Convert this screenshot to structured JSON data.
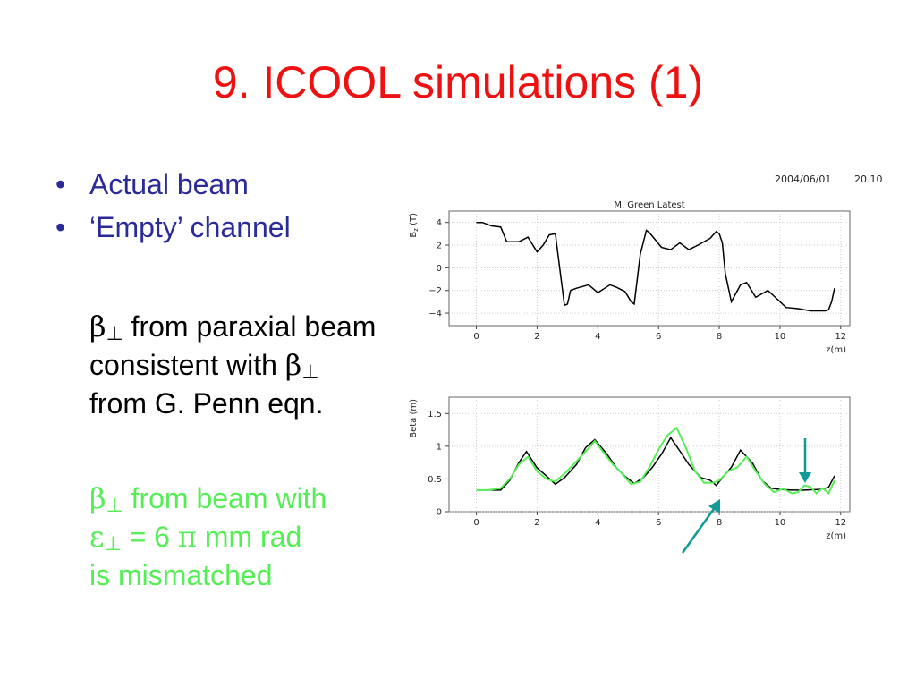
{
  "title": "9. ICOOL simulations (1)",
  "bullets": [
    {
      "marker": "•",
      "text": "Actual beam"
    },
    {
      "marker": "•",
      "text": "‘Empty’ channel"
    }
  ],
  "para1": {
    "marker": "",
    "symbol": "β",
    "sub": "⊥",
    "line1": " from paraxial beam",
    "line2": "consistent with ",
    "symbol2": "β",
    "sub2": "⊥",
    "line3": "from G. Penn eqn."
  },
  "para2": {
    "marker": "",
    "symbol": "β",
    "sub": "⊥",
    "line1": " from beam with",
    "symbol2": "ε",
    "sub2": "⊥",
    "line2a": " = 6 ",
    "symbol3": "π",
    "line2b": " mm rad",
    "line3": "is mismatched"
  },
  "stamp": {
    "date": "2004/06/01",
    "time": "20.10"
  },
  "colors": {
    "title": "#ee1111",
    "bullet": "#2b2a99",
    "green": "#55ee55",
    "arrow": "#119999"
  },
  "chart_data": [
    {
      "type": "line",
      "title": "M. Green Latest",
      "xlabel": "z(m)",
      "ylabel": "B_z (T)",
      "ylabel_main": "B",
      "ylabel_sub": "z",
      "ylabel_unit": " (T)",
      "xlim": [
        -0.9,
        12.3
      ],
      "ylim": [
        -5.1,
        5.0
      ],
      "xticks": [
        0,
        2,
        4,
        6,
        8,
        10,
        12
      ],
      "yticks": [
        -4,
        -2,
        0,
        2,
        4
      ],
      "grid": true,
      "series": [
        {
          "color": "#000000",
          "x": [
            0,
            0.2,
            0.5,
            0.8,
            1.0,
            1.4,
            1.7,
            2.0,
            2.2,
            2.4,
            2.6,
            2.8,
            2.9,
            3.0,
            3.1,
            3.3,
            3.7,
            4.0,
            4.4,
            4.6,
            4.9,
            5.1,
            5.2,
            5.4,
            5.6,
            5.7,
            6.1,
            6.4,
            6.7,
            7.0,
            7.3,
            7.7,
            7.9,
            8.0,
            8.1,
            8.2,
            8.4,
            8.7,
            8.9,
            9.2,
            9.6,
            9.8,
            10.2,
            10.6,
            11.0,
            11.3,
            11.5,
            11.6,
            11.7,
            11.8
          ],
          "y": [
            4.0,
            4.0,
            3.7,
            3.6,
            2.3,
            2.3,
            2.7,
            1.4,
            2.0,
            2.9,
            3.0,
            -1.2,
            -3.3,
            -3.2,
            -2.0,
            -1.8,
            -1.5,
            -2.2,
            -1.5,
            -1.7,
            -2.1,
            -3.0,
            -3.2,
            1.2,
            3.3,
            3.1,
            1.8,
            1.6,
            2.2,
            1.6,
            2.0,
            2.6,
            3.2,
            3.0,
            2.2,
            -0.5,
            -3.0,
            -1.5,
            -1.3,
            -2.6,
            -2.0,
            -2.5,
            -3.5,
            -3.6,
            -3.8,
            -3.8,
            -3.8,
            -3.7,
            -3.0,
            -1.8
          ]
        }
      ]
    },
    {
      "type": "line",
      "title": "",
      "xlabel": "z(m)",
      "ylabel": "Beta (m)",
      "xlim": [
        -0.9,
        12.3
      ],
      "ylim": [
        0,
        1.75
      ],
      "xticks": [
        0,
        2,
        4,
        6,
        8,
        10,
        12
      ],
      "yticks": [
        0,
        0.5,
        1,
        1.5
      ],
      "grid": true,
      "series": [
        {
          "color": "#000000",
          "x": [
            0,
            0.5,
            0.8,
            1.1,
            1.4,
            1.65,
            2.0,
            2.3,
            2.6,
            2.9,
            3.3,
            3.6,
            3.9,
            4.3,
            4.6,
            4.9,
            5.2,
            5.5,
            5.8,
            6.1,
            6.4,
            6.7,
            7.0,
            7.4,
            7.7,
            7.9,
            8.1,
            8.4,
            8.7,
            9.1,
            9.4,
            9.7,
            10.0,
            10.4,
            10.8,
            11.3,
            11.6,
            11.8
          ],
          "y": [
            0.33,
            0.33,
            0.33,
            0.48,
            0.75,
            0.92,
            0.67,
            0.55,
            0.42,
            0.52,
            0.72,
            0.98,
            1.1,
            0.88,
            0.68,
            0.54,
            0.43,
            0.52,
            0.68,
            0.88,
            1.13,
            0.93,
            0.72,
            0.52,
            0.48,
            0.4,
            0.52,
            0.68,
            0.94,
            0.74,
            0.48,
            0.36,
            0.34,
            0.33,
            0.33,
            0.34,
            0.37,
            0.55
          ]
        },
        {
          "color": "#55ee55",
          "x": [
            0,
            0.4,
            0.8,
            1.1,
            1.4,
            1.7,
            2.0,
            2.3,
            2.6,
            2.9,
            3.2,
            3.6,
            3.9,
            4.2,
            4.5,
            4.8,
            5.1,
            5.4,
            5.7,
            6.0,
            6.3,
            6.6,
            6.9,
            7.2,
            7.5,
            7.8,
            8.0,
            8.3,
            8.6,
            8.9,
            9.2,
            9.5,
            9.8,
            10.1,
            10.4,
            10.6,
            10.8,
            11.0,
            11.2,
            11.4,
            11.6,
            11.8
          ],
          "y": [
            0.33,
            0.33,
            0.36,
            0.5,
            0.72,
            0.84,
            0.62,
            0.5,
            0.46,
            0.58,
            0.72,
            0.92,
            1.08,
            0.9,
            0.72,
            0.58,
            0.42,
            0.46,
            0.68,
            0.95,
            1.17,
            1.28,
            0.98,
            0.62,
            0.44,
            0.44,
            0.48,
            0.62,
            0.68,
            0.84,
            0.62,
            0.42,
            0.3,
            0.35,
            0.28,
            0.3,
            0.4,
            0.38,
            0.28,
            0.36,
            0.28,
            0.48
          ]
        }
      ]
    }
  ]
}
